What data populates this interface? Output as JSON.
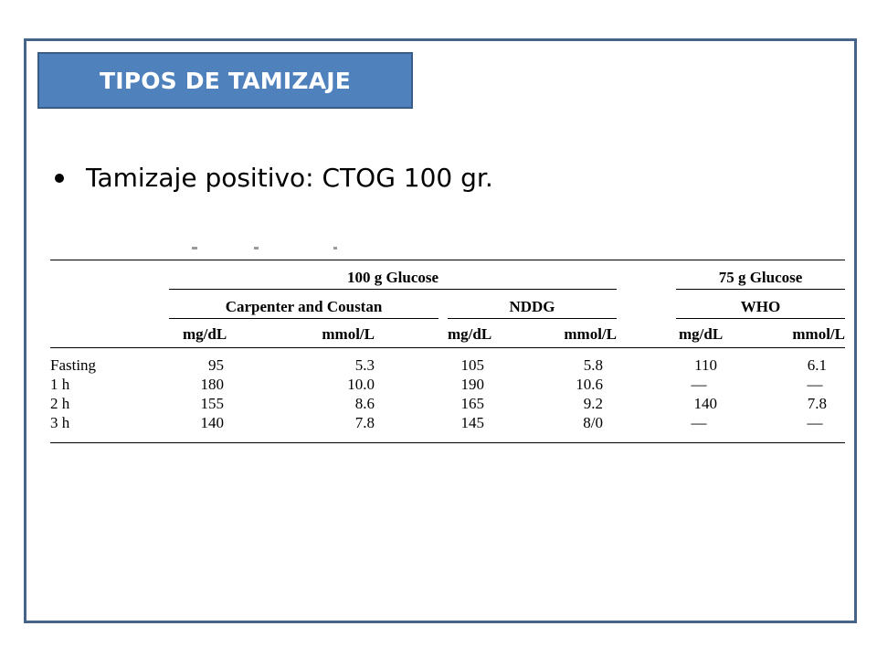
{
  "slide": {
    "title": "TIPOS DE TAMIZAJE",
    "bullet": "Tamizaje positivo: CTOG 100 gr."
  },
  "table": {
    "group_100g": "100 g Glucose",
    "group_75g": "75 g Glucose",
    "sub_carpenter": "Carpenter and Coustan",
    "sub_nddg": "NDDG",
    "sub_who": "WHO",
    "units": [
      "mg/dL",
      "mmol/L",
      "mg/dL",
      "mmol/L",
      "mg/dL",
      "mmol/L"
    ],
    "rows": [
      {
        "label": "Fasting",
        "values": [
          "95",
          "5.3",
          "105",
          "5.8",
          "110",
          "6.1"
        ]
      },
      {
        "label": "1 h",
        "values": [
          "180",
          "10.0",
          "190",
          "10.6",
          "—",
          "—"
        ]
      },
      {
        "label": "2 h",
        "values": [
          "155",
          "8.6",
          "165",
          "9.2",
          "140",
          "7.8"
        ]
      },
      {
        "label": "3 h",
        "values": [
          "140",
          "7.8",
          "145",
          "8/0",
          "—",
          "—"
        ]
      }
    ]
  },
  "colors": {
    "title_fill": "#4f81bd",
    "title_border": "#385d8a",
    "frame_border": "#46638a"
  }
}
